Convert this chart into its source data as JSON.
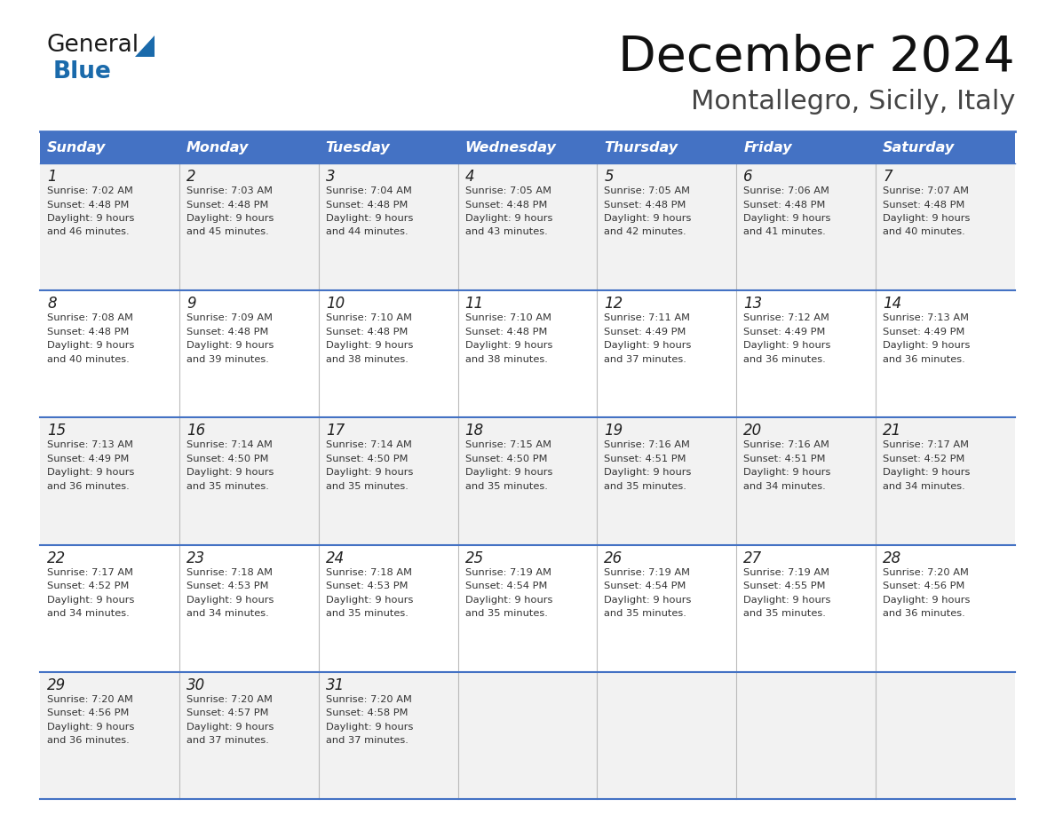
{
  "title": "December 2024",
  "subtitle": "Montallegro, Sicily, Italy",
  "header_color": "#4472C4",
  "header_text_color": "#FFFFFF",
  "cell_bg_even": "#F2F2F2",
  "cell_bg_odd": "#FFFFFF",
  "day_headers": [
    "Sunday",
    "Monday",
    "Tuesday",
    "Wednesday",
    "Thursday",
    "Friday",
    "Saturday"
  ],
  "weeks": [
    [
      {
        "day": 1,
        "sunrise": "7:02 AM",
        "sunset": "4:48 PM",
        "daylight": "9 hours",
        "daylight2": "and 46 minutes."
      },
      {
        "day": 2,
        "sunrise": "7:03 AM",
        "sunset": "4:48 PM",
        "daylight": "9 hours",
        "daylight2": "and 45 minutes."
      },
      {
        "day": 3,
        "sunrise": "7:04 AM",
        "sunset": "4:48 PM",
        "daylight": "9 hours",
        "daylight2": "and 44 minutes."
      },
      {
        "day": 4,
        "sunrise": "7:05 AM",
        "sunset": "4:48 PM",
        "daylight": "9 hours",
        "daylight2": "and 43 minutes."
      },
      {
        "day": 5,
        "sunrise": "7:05 AM",
        "sunset": "4:48 PM",
        "daylight": "9 hours",
        "daylight2": "and 42 minutes."
      },
      {
        "day": 6,
        "sunrise": "7:06 AM",
        "sunset": "4:48 PM",
        "daylight": "9 hours",
        "daylight2": "and 41 minutes."
      },
      {
        "day": 7,
        "sunrise": "7:07 AM",
        "sunset": "4:48 PM",
        "daylight": "9 hours",
        "daylight2": "and 40 minutes."
      }
    ],
    [
      {
        "day": 8,
        "sunrise": "7:08 AM",
        "sunset": "4:48 PM",
        "daylight": "9 hours",
        "daylight2": "and 40 minutes."
      },
      {
        "day": 9,
        "sunrise": "7:09 AM",
        "sunset": "4:48 PM",
        "daylight": "9 hours",
        "daylight2": "and 39 minutes."
      },
      {
        "day": 10,
        "sunrise": "7:10 AM",
        "sunset": "4:48 PM",
        "daylight": "9 hours",
        "daylight2": "and 38 minutes."
      },
      {
        "day": 11,
        "sunrise": "7:10 AM",
        "sunset": "4:48 PM",
        "daylight": "9 hours",
        "daylight2": "and 38 minutes."
      },
      {
        "day": 12,
        "sunrise": "7:11 AM",
        "sunset": "4:49 PM",
        "daylight": "9 hours",
        "daylight2": "and 37 minutes."
      },
      {
        "day": 13,
        "sunrise": "7:12 AM",
        "sunset": "4:49 PM",
        "daylight": "9 hours",
        "daylight2": "and 36 minutes."
      },
      {
        "day": 14,
        "sunrise": "7:13 AM",
        "sunset": "4:49 PM",
        "daylight": "9 hours",
        "daylight2": "and 36 minutes."
      }
    ],
    [
      {
        "day": 15,
        "sunrise": "7:13 AM",
        "sunset": "4:49 PM",
        "daylight": "9 hours",
        "daylight2": "and 36 minutes."
      },
      {
        "day": 16,
        "sunrise": "7:14 AM",
        "sunset": "4:50 PM",
        "daylight": "9 hours",
        "daylight2": "and 35 minutes."
      },
      {
        "day": 17,
        "sunrise": "7:14 AM",
        "sunset": "4:50 PM",
        "daylight": "9 hours",
        "daylight2": "and 35 minutes."
      },
      {
        "day": 18,
        "sunrise": "7:15 AM",
        "sunset": "4:50 PM",
        "daylight": "9 hours",
        "daylight2": "and 35 minutes."
      },
      {
        "day": 19,
        "sunrise": "7:16 AM",
        "sunset": "4:51 PM",
        "daylight": "9 hours",
        "daylight2": "and 35 minutes."
      },
      {
        "day": 20,
        "sunrise": "7:16 AM",
        "sunset": "4:51 PM",
        "daylight": "9 hours",
        "daylight2": "and 34 minutes."
      },
      {
        "day": 21,
        "sunrise": "7:17 AM",
        "sunset": "4:52 PM",
        "daylight": "9 hours",
        "daylight2": "and 34 minutes."
      }
    ],
    [
      {
        "day": 22,
        "sunrise": "7:17 AM",
        "sunset": "4:52 PM",
        "daylight": "9 hours",
        "daylight2": "and 34 minutes."
      },
      {
        "day": 23,
        "sunrise": "7:18 AM",
        "sunset": "4:53 PM",
        "daylight": "9 hours",
        "daylight2": "and 34 minutes."
      },
      {
        "day": 24,
        "sunrise": "7:18 AM",
        "sunset": "4:53 PM",
        "daylight": "9 hours",
        "daylight2": "and 35 minutes."
      },
      {
        "day": 25,
        "sunrise": "7:19 AM",
        "sunset": "4:54 PM",
        "daylight": "9 hours",
        "daylight2": "and 35 minutes."
      },
      {
        "day": 26,
        "sunrise": "7:19 AM",
        "sunset": "4:54 PM",
        "daylight": "9 hours",
        "daylight2": "and 35 minutes."
      },
      {
        "day": 27,
        "sunrise": "7:19 AM",
        "sunset": "4:55 PM",
        "daylight": "9 hours",
        "daylight2": "and 35 minutes."
      },
      {
        "day": 28,
        "sunrise": "7:20 AM",
        "sunset": "4:56 PM",
        "daylight": "9 hours",
        "daylight2": "and 36 minutes."
      }
    ],
    [
      {
        "day": 29,
        "sunrise": "7:20 AM",
        "sunset": "4:56 PM",
        "daylight": "9 hours",
        "daylight2": "and 36 minutes."
      },
      {
        "day": 30,
        "sunrise": "7:20 AM",
        "sunset": "4:57 PM",
        "daylight": "9 hours",
        "daylight2": "and 37 minutes."
      },
      {
        "day": 31,
        "sunrise": "7:20 AM",
        "sunset": "4:58 PM",
        "daylight": "9 hours",
        "daylight2": "and 37 minutes."
      },
      null,
      null,
      null,
      null
    ]
  ],
  "logo_color_general": "#1a1a1a",
  "logo_color_blue": "#1a6aab",
  "logo_triangle_color": "#1a6aab",
  "header_border_color": "#4472C4",
  "week_border_color": "#4472C4",
  "col_line_color": "#BBBBBB"
}
